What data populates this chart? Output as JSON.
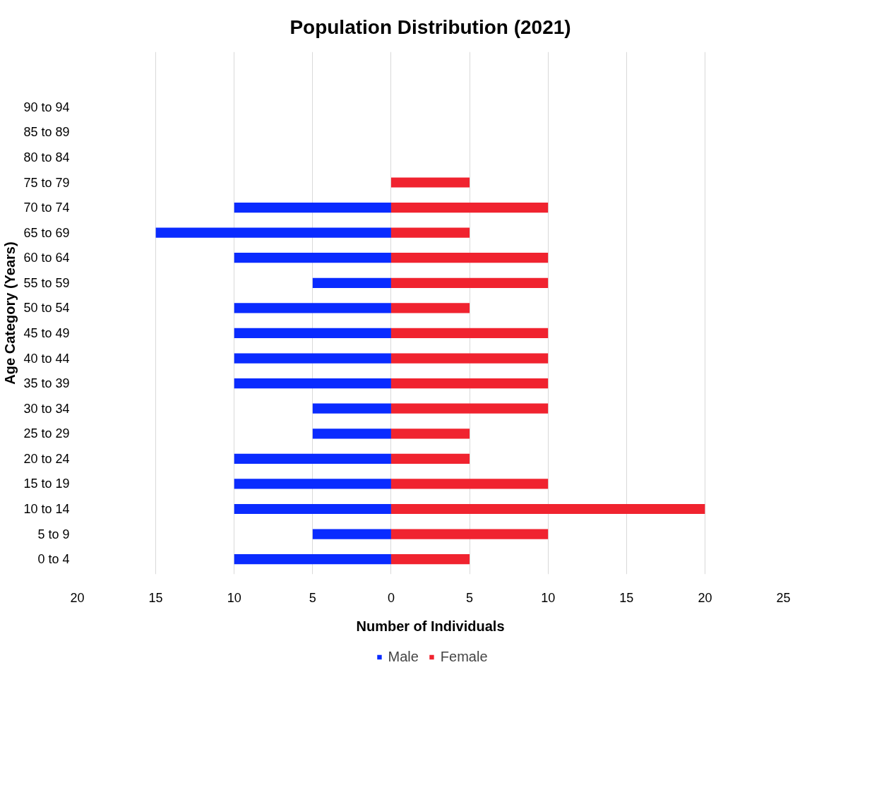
{
  "chart_data": {
    "type": "bar",
    "orientation": "horizontal",
    "title": "Population Distribution (2021)",
    "xlabel": "Number of Individuals",
    "ylabel": "Age Category (Years)",
    "categories": [
      "90 to 94",
      "85 to 89",
      "80 to 84",
      "75 to 79",
      "70 to 74",
      "65 to 69",
      "60 to 64",
      "55 to 59",
      "50 to 54",
      "45 to 49",
      "40 to 44",
      "35 to 39",
      "30 to 34",
      "25 to 29",
      "20 to 24",
      "15 to 19",
      "10 to 14",
      "5 to 9",
      "0 to 4"
    ],
    "series": [
      {
        "name": "Male",
        "color": "#0a2bff",
        "values": [
          null,
          null,
          null,
          null,
          -10,
          -15,
          -10,
          -5,
          -10,
          -10,
          -10,
          -10,
          -5,
          -5,
          -10,
          -10,
          -10,
          -5,
          -10
        ]
      },
      {
        "name": "Female",
        "color": "#f0232f",
        "values": [
          null,
          null,
          null,
          5,
          10,
          5,
          10,
          10,
          5,
          10,
          10,
          10,
          10,
          5,
          5,
          10,
          20,
          10,
          5
        ]
      }
    ],
    "xlim": [
      -20,
      25
    ],
    "xticks": [
      {
        "value": -20,
        "label": "20"
      },
      {
        "value": -15,
        "label": "15"
      },
      {
        "value": -10,
        "label": "10"
      },
      {
        "value": -5,
        "label": "5"
      },
      0,
      5,
      10,
      15,
      20,
      25
    ],
    "grid": "x",
    "legend": "bottom",
    "stacked": true
  }
}
